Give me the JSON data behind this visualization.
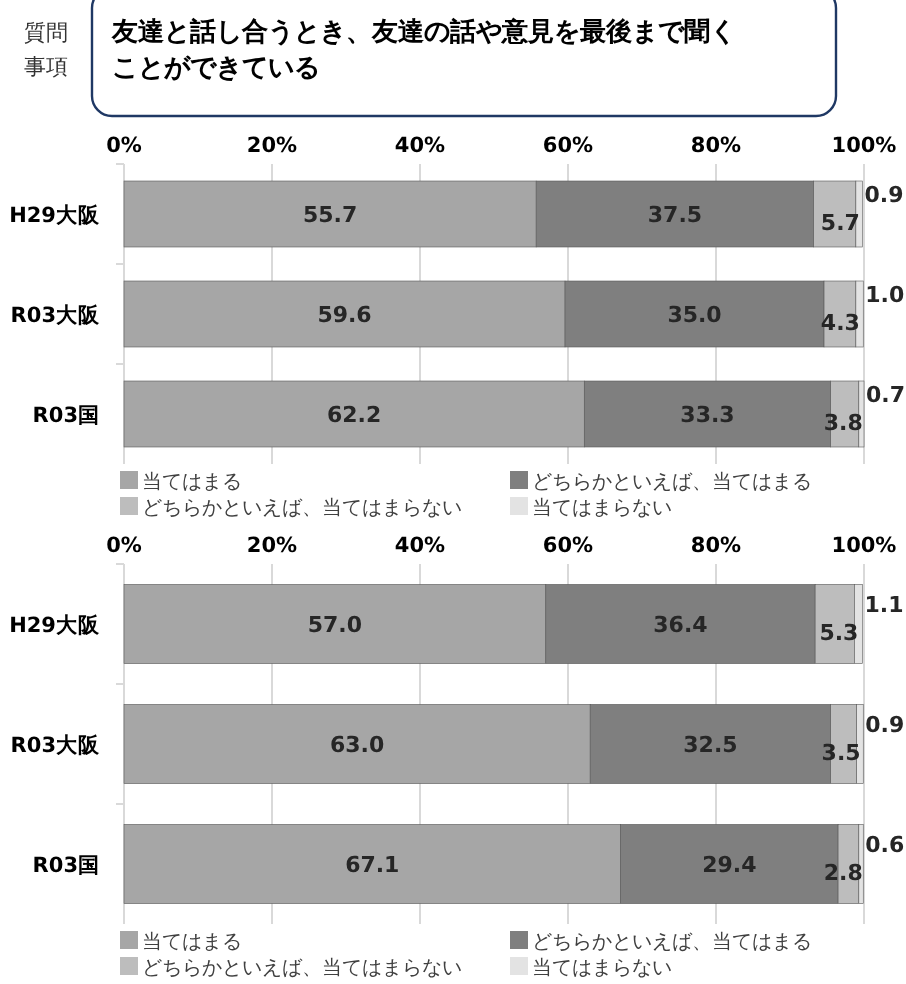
{
  "chart_data": [
    {
      "type": "bar",
      "orientation": "horizontal",
      "stacked": true,
      "title": "友達と話し合うとき、友達の話や意見を最後まで聞くことができている",
      "annotations": [
        "質問事項"
      ],
      "categories": [
        "H29大阪",
        "R03大阪",
        "R03国"
      ],
      "series": [
        {
          "name": "当てはまる",
          "color": "#a6a6a6",
          "values": [
            55.7,
            59.6,
            62.2
          ],
          "value_labels": [
            "55.7",
            "59.6",
            "62.2"
          ]
        },
        {
          "name": "どちらかといえば、当てはまる",
          "color": "#7f7f7f",
          "values": [
            37.5,
            35.0,
            33.3
          ],
          "value_labels": [
            "37.5",
            "35.0",
            "33.3"
          ]
        },
        {
          "name": "どちらかといえば、当てはまらない",
          "color": "#bdbdbd",
          "values": [
            5.7,
            4.3,
            3.8
          ],
          "value_labels": [
            "5.7",
            "4.3",
            "3.8"
          ]
        },
        {
          "name": "当てはまらない",
          "color": "#e3e3e3",
          "values": [
            0.9,
            1.0,
            0.7
          ],
          "value_labels": [
            "0.9",
            "1.0",
            "0.7"
          ]
        }
      ],
      "xlim": [
        0,
        100
      ],
      "xticks": [
        {
          "value": 0,
          "label": "0%"
        },
        {
          "value": 20,
          "label": "20%"
        },
        {
          "value": 40,
          "label": "40%"
        },
        {
          "value": 60,
          "label": "60%"
        },
        {
          "value": 80,
          "label": "80%"
        },
        {
          "value": 100,
          "label": "100%"
        }
      ],
      "grid": "x",
      "legend": "bottom"
    },
    {
      "type": "bar",
      "orientation": "horizontal",
      "stacked": true,
      "categories": [
        "H29大阪",
        "R03大阪",
        "R03国"
      ],
      "series": [
        {
          "name": "当てはまる",
          "color": "#a6a6a6",
          "values": [
            57.0,
            63.0,
            67.1
          ],
          "value_labels": [
            "57.0",
            "63.0",
            "67.1"
          ]
        },
        {
          "name": "どちらかといえば、当てはまる",
          "color": "#7f7f7f",
          "values": [
            36.4,
            32.5,
            29.4
          ],
          "value_labels": [
            "36.4",
            "32.5",
            "29.4"
          ]
        },
        {
          "name": "どちらかといえば、当てはまらない",
          "color": "#bdbdbd",
          "values": [
            5.3,
            3.5,
            2.8
          ],
          "value_labels": [
            "5.3",
            "3.5",
            "2.8"
          ]
        },
        {
          "name": "当てはまらない",
          "color": "#e3e3e3",
          "values": [
            1.1,
            0.9,
            0.6
          ],
          "value_labels": [
            "1.1",
            "0.9",
            "0.6"
          ]
        }
      ],
      "xlim": [
        0,
        100
      ],
      "xticks": [
        {
          "value": 0,
          "label": "0%"
        },
        {
          "value": 20,
          "label": "20%"
        },
        {
          "value": 40,
          "label": "40%"
        },
        {
          "value": 60,
          "label": "60%"
        },
        {
          "value": 80,
          "label": "80%"
        },
        {
          "value": 100,
          "label": "100%"
        }
      ],
      "grid": "x",
      "legend": "bottom"
    }
  ]
}
